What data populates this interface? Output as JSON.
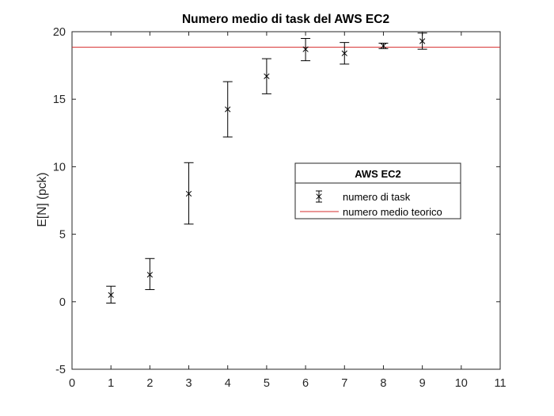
{
  "chart_data": {
    "type": "scatter",
    "title": "Numero medio di task del AWS EC2",
    "xlabel": "",
    "ylabel": "E[N] (pck)",
    "xlim": [
      0,
      11
    ],
    "ylim": [
      -5,
      20
    ],
    "xticks": [
      0,
      1,
      2,
      3,
      4,
      5,
      6,
      7,
      8,
      9,
      10,
      11
    ],
    "yticks": [
      -5,
      0,
      5,
      10,
      15,
      20
    ],
    "grid": false,
    "legend": {
      "title": "AWS EC2",
      "position": "right-center",
      "entries": [
        "numero di task",
        "numero medio teorico"
      ]
    },
    "series": [
      {
        "name": "numero di task",
        "marker": "x",
        "color": "#000000",
        "x": [
          1,
          2,
          3,
          4,
          5,
          6,
          7,
          8,
          9
        ],
        "y": [
          0.5,
          2.0,
          8.0,
          14.25,
          16.7,
          18.7,
          18.4,
          18.95,
          19.3
        ],
        "err_low": [
          0.6,
          1.1,
          2.25,
          2.05,
          1.3,
          0.85,
          0.8,
          0.2,
          0.6
        ],
        "err_high": [
          0.65,
          1.2,
          2.3,
          2.05,
          1.3,
          0.8,
          0.8,
          0.2,
          0.6
        ]
      },
      {
        "name": "numero medio teorico",
        "type": "hline",
        "color": "#d62c2c",
        "y": 18.85
      }
    ]
  }
}
